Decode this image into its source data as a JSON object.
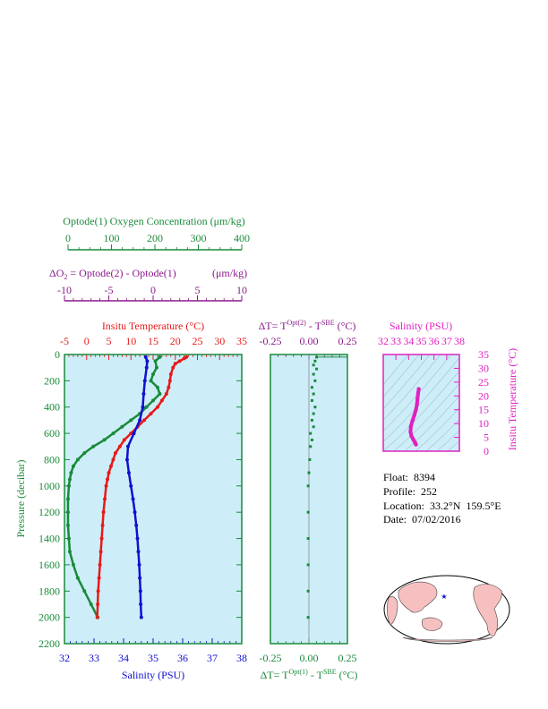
{
  "colors": {
    "oxygen": "#1a8a3a",
    "delta_o2": "#8b1a8b",
    "temperature": "#e8191a",
    "salinity": "#1010d0",
    "pressure_axis": "#1a8a3a",
    "delta_t": "#1a8a3a",
    "ts_plot": "#e020c0",
    "panel_bg": "#cdeef8"
  },
  "oxygen_axis": {
    "title": "Optode(1) Oxygen Concentration (μm/kg)",
    "ticks": [
      "0",
      "100",
      "200",
      "300",
      "400"
    ]
  },
  "delta_o2_axis": {
    "title_prefix": "ΔO",
    "title_sub": "2",
    "title_rest": " = Optode(2) - Optode(1)",
    "title_units": "(μm/kg)",
    "ticks": [
      "-10",
      "-5",
      "0",
      "5",
      "10"
    ]
  },
  "main_panel": {
    "temp_title": "Insitu Temperature (°C)",
    "temp_ticks": [
      "-5",
      "0",
      "5",
      "10",
      "15",
      "20",
      "25",
      "30",
      "35"
    ],
    "sal_title": "Salinity (PSU)",
    "sal_ticks": [
      "32",
      "33",
      "34",
      "35",
      "36",
      "37",
      "38"
    ],
    "pressure_title": "Pressure (decibar)",
    "pressure_ticks": [
      "0",
      "200",
      "400",
      "600",
      "800",
      "1000",
      "1200",
      "1400",
      "1600",
      "1800",
      "2000",
      "2200"
    ]
  },
  "delta_t_panel": {
    "top_title_a": "ΔT= T",
    "top_title_sup": "Opt(2)",
    "top_title_b": " - T",
    "top_title_sup2": "SBE",
    "top_title_c": " (°C)",
    "bottom_title_a": "ΔT= T",
    "bottom_title_sup": "Opt(1)",
    "bottom_title_b": " - T",
    "bottom_title_sup2": "SBE",
    "bottom_title_c": " (°C)",
    "ticks": [
      "-0.25",
      "0.00",
      "0.25"
    ]
  },
  "ts_panel": {
    "sal_title": "Salinity (PSU)",
    "sal_ticks": [
      "32",
      "33",
      "34",
      "35",
      "36",
      "37",
      "38"
    ],
    "temp_title": "Insitu Temperature (°C)",
    "temp_ticks": [
      "0",
      "5",
      "10",
      "15",
      "20",
      "25",
      "30",
      "35"
    ]
  },
  "float_info": {
    "float_line": "Float:  8394",
    "profile_line": "Profile:  252",
    "location_line": "Location:  33.2°N  159.5°E",
    "date_line": "Date:  07/02/2016"
  },
  "chart_data": [
    {
      "type": "line",
      "name_axis": "depth profiles",
      "pressure_range": [
        0,
        2200
      ],
      "temperature": {
        "range": [
          -5,
          35
        ],
        "points": [
          [
            22.5,
            20
          ],
          [
            22,
            30
          ],
          [
            21,
            50
          ],
          [
            20,
            70
          ],
          [
            19.5,
            100
          ],
          [
            19,
            150
          ],
          [
            18.8,
            200
          ],
          [
            18.5,
            250
          ],
          [
            18,
            300
          ],
          [
            17,
            350
          ],
          [
            16,
            400
          ],
          [
            14.5,
            450
          ],
          [
            13,
            500
          ],
          [
            11.5,
            550
          ],
          [
            10,
            600
          ],
          [
            8.5,
            650
          ],
          [
            7.5,
            700
          ],
          [
            6.5,
            750
          ],
          [
            6,
            800
          ],
          [
            5.5,
            850
          ],
          [
            5,
            900
          ],
          [
            4.7,
            950
          ],
          [
            4.4,
            1000
          ],
          [
            4.1,
            1100
          ],
          [
            3.8,
            1200
          ],
          [
            3.6,
            1300
          ],
          [
            3.4,
            1400
          ],
          [
            3.2,
            1500
          ],
          [
            3.0,
            1600
          ],
          [
            2.8,
            1700
          ],
          [
            2.6,
            1800
          ],
          [
            2.5,
            1900
          ],
          [
            2.4,
            2000
          ]
        ]
      },
      "salinity": {
        "range": [
          32,
          38
        ],
        "points": [
          [
            34.75,
            20
          ],
          [
            34.8,
            50
          ],
          [
            34.78,
            100
          ],
          [
            34.72,
            200
          ],
          [
            34.68,
            300
          ],
          [
            34.65,
            400
          ],
          [
            34.55,
            500
          ],
          [
            34.35,
            600
          ],
          [
            34.15,
            700
          ],
          [
            34.12,
            800
          ],
          [
            34.18,
            900
          ],
          [
            34.25,
            1000
          ],
          [
            34.32,
            1100
          ],
          [
            34.38,
            1200
          ],
          [
            34.43,
            1300
          ],
          [
            34.47,
            1400
          ],
          [
            34.5,
            1500
          ],
          [
            34.53,
            1600
          ],
          [
            34.55,
            1700
          ],
          [
            34.57,
            1800
          ],
          [
            34.58,
            1900
          ],
          [
            34.6,
            2000
          ]
        ]
      },
      "oxygen": {
        "range": [
          0,
          400
        ],
        "points": [
          [
            215,
            20
          ],
          [
            205,
            50
          ],
          [
            208,
            100
          ],
          [
            200,
            150
          ],
          [
            195,
            200
          ],
          [
            210,
            250
          ],
          [
            215,
            300
          ],
          [
            200,
            350
          ],
          [
            185,
            400
          ],
          [
            170,
            450
          ],
          [
            150,
            500
          ],
          [
            130,
            550
          ],
          [
            110,
            600
          ],
          [
            90,
            650
          ],
          [
            65,
            700
          ],
          [
            45,
            750
          ],
          [
            30,
            800
          ],
          [
            20,
            850
          ],
          [
            15,
            900
          ],
          [
            12,
            950
          ],
          [
            10,
            1000
          ],
          [
            8,
            1100
          ],
          [
            8,
            1200
          ],
          [
            8,
            1300
          ],
          [
            10,
            1400
          ],
          [
            12,
            1500
          ],
          [
            20,
            1600
          ],
          [
            30,
            1700
          ],
          [
            45,
            1800
          ],
          [
            60,
            1900
          ],
          [
            75,
            2000
          ]
        ]
      }
    },
    {
      "type": "scatter",
      "name_axis": "temperature difference",
      "x_range": [
        -0.25,
        0.25
      ],
      "pressure_range": [
        0,
        2200
      ],
      "points": [
        [
          0.05,
          20
        ],
        [
          0.04,
          50
        ],
        [
          0.03,
          80
        ],
        [
          0.05,
          110
        ],
        [
          0.03,
          150
        ],
        [
          0.04,
          200
        ],
        [
          0.02,
          250
        ],
        [
          0.03,
          300
        ],
        [
          0.02,
          350
        ],
        [
          0.04,
          400
        ],
        [
          0.03,
          450
        ],
        [
          0.02,
          500
        ],
        [
          0.03,
          550
        ],
        [
          0.01,
          600
        ],
        [
          0.02,
          650
        ],
        [
          0.01,
          700
        ],
        [
          0.005,
          800
        ],
        [
          0.0,
          900
        ],
        [
          -0.005,
          1000
        ],
        [
          -0.005,
          1200
        ],
        [
          -0.005,
          1400
        ],
        [
          -0.005,
          1600
        ],
        [
          -0.005,
          1800
        ],
        [
          -0.005,
          2000
        ]
      ]
    },
    {
      "type": "scatter",
      "name_axis": "T-S diagram",
      "x_range": [
        32,
        38
      ],
      "y_range": [
        0,
        35
      ],
      "points": [
        [
          34.58,
          2.4
        ],
        [
          34.52,
          3.0
        ],
        [
          34.45,
          3.6
        ],
        [
          34.35,
          4.4
        ],
        [
          34.22,
          5.5
        ],
        [
          34.15,
          7
        ],
        [
          34.18,
          9
        ],
        [
          34.3,
          11
        ],
        [
          34.45,
          13
        ],
        [
          34.58,
          15
        ],
        [
          34.66,
          17
        ],
        [
          34.7,
          19
        ],
        [
          34.75,
          21
        ],
        [
          34.8,
          22.5
        ]
      ]
    }
  ]
}
